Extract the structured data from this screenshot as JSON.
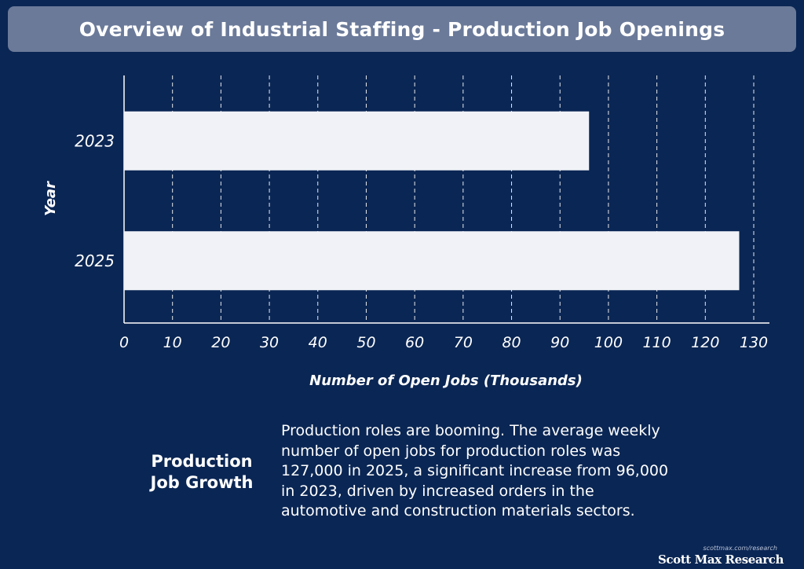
{
  "title": "Overview of Industrial Staffing - Production Job Openings",
  "chart_data": {
    "type": "bar",
    "orientation": "horizontal",
    "categories": [
      "2023",
      "2025"
    ],
    "values": [
      96,
      127
    ],
    "xlabel": "Number of Open Jobs (Thousands)",
    "ylabel": "Year",
    "xlim": [
      0,
      130
    ],
    "xticks": [
      "0",
      "10",
      "20",
      "30",
      "40",
      "50",
      "60",
      "70",
      "80",
      "90",
      "100",
      "110",
      "120",
      "130"
    ],
    "grid": "vertical dashed",
    "bar_color": "#f0f2f7"
  },
  "summary": {
    "heading_line1": "Production",
    "heading_line2": "Job Growth",
    "text": "Production roles are booming. The average weekly number of open jobs for production roles was 127,000 in 2025, a significant increase from 96,000 in 2023, driven by increased orders in the automotive and construction materials sectors."
  },
  "brand": {
    "url": "scottmax.com/research",
    "name": "Scott Max Research"
  },
  "colors": {
    "background": "#0a2654",
    "title_bar": "#6b7a99",
    "text": "#ffffff"
  }
}
